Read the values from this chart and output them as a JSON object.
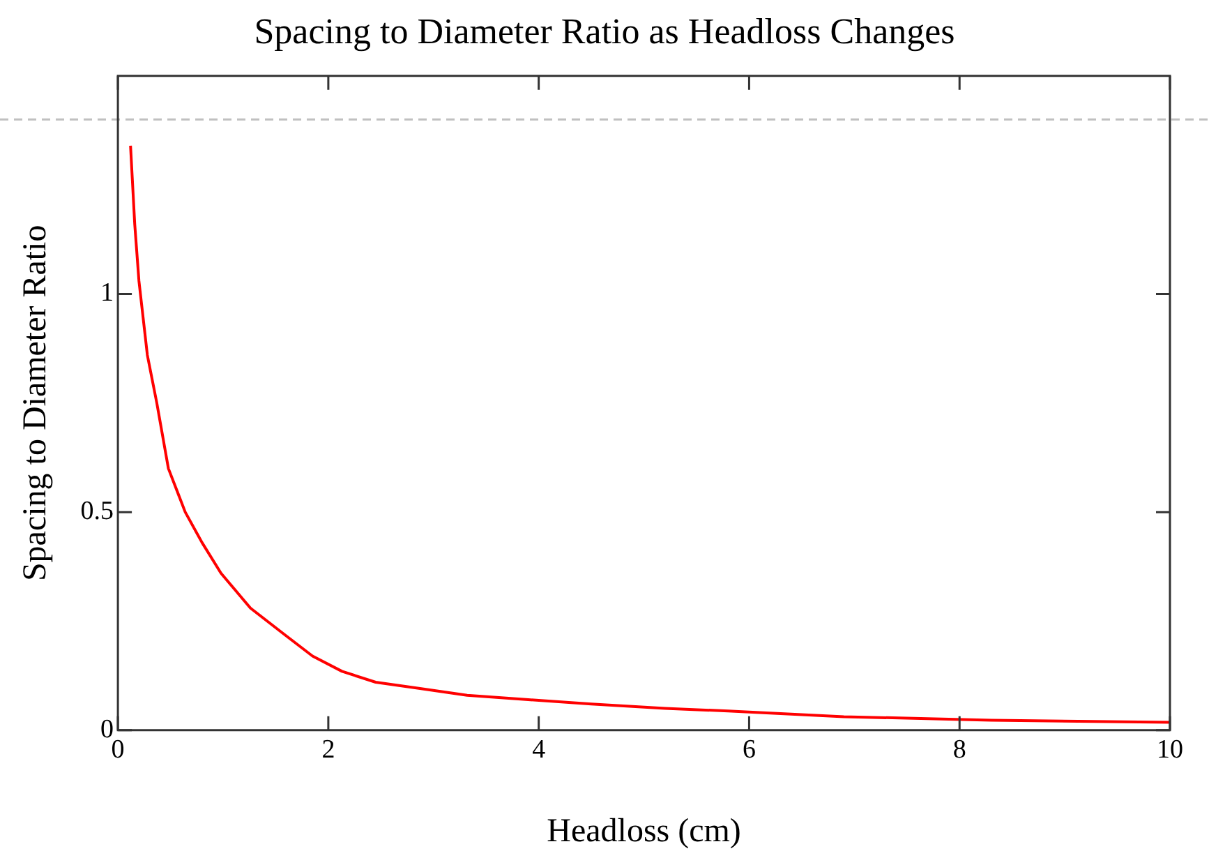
{
  "chart_data": {
    "type": "line",
    "title": "Spacing to Diameter Ratio as Headloss Changes",
    "xlabel": "Headloss (cm)",
    "ylabel": "Spacing to Diameter Ratio",
    "series": [
      {
        "color": "#ff0000",
        "x": [
          0.12,
          0.16,
          0.2,
          0.28,
          0.37,
          0.48,
          0.64,
          0.8,
          0.98,
          1.26,
          1.58,
          1.85,
          2.13,
          2.45,
          2.86,
          3.32,
          3.9,
          4.5,
          5.2,
          5.8,
          6.9,
          8.3,
          10
        ],
        "values": [
          1.34,
          1.16,
          1.03,
          0.86,
          0.75,
          0.6,
          0.5,
          0.43,
          0.36,
          0.28,
          0.22,
          0.17,
          0.135,
          0.11,
          0.096,
          0.08,
          0.07,
          0.06,
          0.05,
          0.044,
          0.031,
          0.023,
          0.018
        ]
      }
    ],
    "xlim": [
      0,
      10
    ],
    "xticks": [
      0,
      2,
      4,
      6,
      8,
      10
    ],
    "ylim": [
      0,
      1.5
    ],
    "yticks": [
      0,
      0.5,
      1
    ],
    "ref_lines": [
      {
        "axis": "y",
        "value": 1.4,
        "color": "#c0c0c0",
        "line_style": "dashed"
      }
    ],
    "grid": false,
    "legend": false,
    "marker": "none",
    "line_style": "solid"
  }
}
